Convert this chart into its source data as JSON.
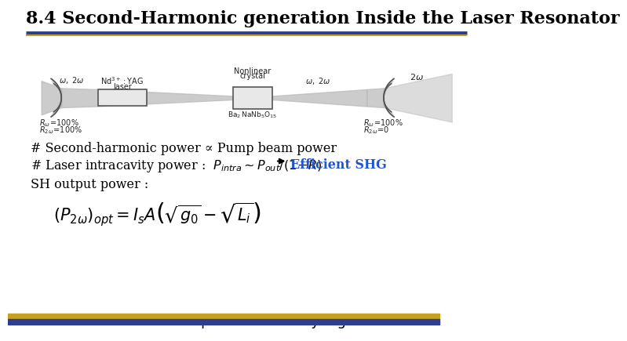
{
  "title": "8.4 Second-Harmonic generation Inside the Laser Resonator",
  "title_fontsize": 16,
  "bg_color": "#ffffff",
  "title_underline_color1": "#2c3e8c",
  "title_underline_color2": "#c8a020",
  "footer_bar_color1": "#c8a020",
  "footer_bar_color2": "#2c3e8c",
  "footer_text": "Nonlinear Optics Lab.   Hanyang Univ.",
  "footer_fontsize": 13,
  "line1": "# Second-harmonic power ∝ Pump beam power",
  "line3": "SH output power :",
  "text_color": "#000000",
  "efficient_shg_color": "#2255cc",
  "beam_color": "#bbbbbb",
  "mirror_fill": "#cccccc",
  "mirror_edge": "#555555",
  "box_fill": "#e8e8e8",
  "box_edge": "#555555"
}
